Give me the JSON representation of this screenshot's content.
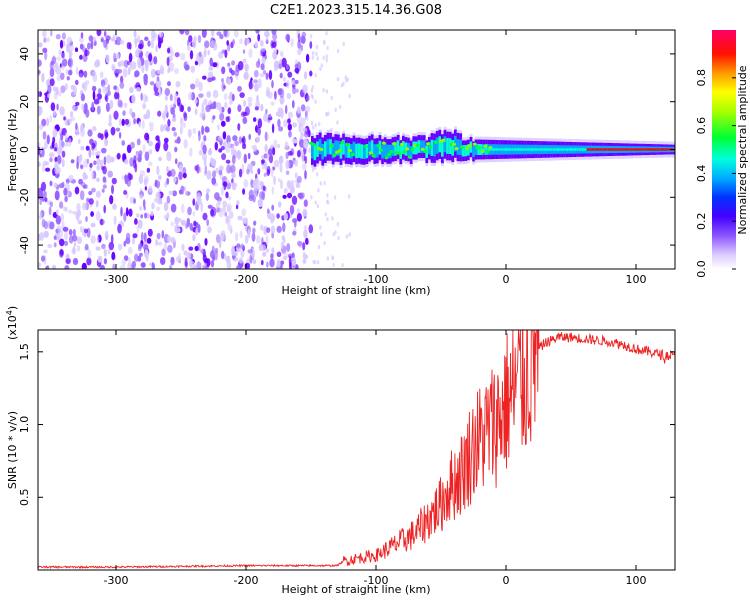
{
  "title": "C2E1.2023.315.14.36.G08",
  "colors": {
    "cmap": [
      "#ffffff",
      "#d7c8ff",
      "#9966ff",
      "#6600ff",
      "#2222ff",
      "#00aaff",
      "#00ffcc",
      "#00ff33",
      "#88ff00",
      "#ffff00",
      "#ff9900",
      "#ff0000",
      "#ff0066"
    ],
    "snr_line": "#ee2222"
  },
  "chart_data": [
    {
      "type": "heatmap",
      "xlabel": "Height of straight line (km)",
      "ylabel": "Frequency (Hz)",
      "xlim": [
        -360,
        130
      ],
      "ylim": [
        -50,
        50
      ],
      "x_ticks": [
        -300,
        -200,
        -100,
        0,
        100
      ],
      "x_tick_labels": [
        "-300",
        "-200",
        "-100",
        "0",
        "100"
      ],
      "y_ticks": [
        -40,
        -20,
        0,
        20,
        40
      ],
      "y_tick_labels": [
        "-40",
        "-20",
        "0",
        "20",
        "40"
      ],
      "colorbar": {
        "label": "Normalized spectral amplitude",
        "range": [
          0,
          1
        ],
        "ticks": [
          0.0,
          0.2,
          0.4,
          0.6,
          0.8
        ],
        "tick_labels": [
          "0.0",
          "0.2",
          "0.4",
          "0.6",
          "0.8"
        ]
      },
      "regions": [
        {
          "name": "noise",
          "x_range": [
            -360,
            -150
          ],
          "freq_range": [
            -50,
            50
          ]
        },
        {
          "name": "sparse",
          "x_range": [
            -150,
            -120
          ],
          "freq_range": [
            -50,
            50
          ]
        },
        {
          "name": "carrier",
          "x_range": [
            -150,
            130
          ],
          "center_freq": 0,
          "half_width": [
            6,
            2
          ]
        }
      ]
    },
    {
      "type": "line",
      "xlabel": "Height of straight line (km)",
      "ylabel": "SNR (10 * v/v)",
      "multiplier_label": "(x10",
      "multiplier_exp": "4",
      "multiplier_close": ")",
      "xlim": [
        -360,
        130
      ],
      "ylim": [
        0,
        1.65
      ],
      "x_ticks": [
        -300,
        -200,
        -100,
        0,
        100
      ],
      "x_tick_labels": [
        "-300",
        "-200",
        "-100",
        "0",
        "100"
      ],
      "y_ticks": [
        0.5,
        1.0,
        1.5
      ],
      "y_tick_labels": [
        "0.5",
        "1.0",
        "1.5"
      ],
      "series": [
        {
          "x": [
            -360,
            -300,
            -200,
            -130,
            -125,
            -115,
            -100,
            -90,
            -80,
            -70,
            -60,
            -50,
            -45,
            -40,
            -35,
            -30,
            -25,
            -20,
            -15,
            -10,
            -5,
            0,
            5,
            10,
            15,
            20,
            25,
            30,
            35,
            40,
            45,
            50,
            60,
            70,
            80,
            90,
            100,
            110,
            120,
            130
          ],
          "y": [
            0.02,
            0.02,
            0.03,
            0.03,
            0.06,
            0.08,
            0.1,
            0.15,
            0.2,
            0.25,
            0.35,
            0.45,
            0.55,
            0.6,
            0.65,
            0.75,
            0.85,
            0.9,
            0.95,
            1.0,
            1.05,
            1.15,
            1.2,
            1.28,
            1.35,
            1.45,
            1.52,
            1.56,
            1.58,
            1.6,
            1.6,
            1.6,
            1.59,
            1.58,
            1.57,
            1.55,
            1.52,
            1.5,
            1.48,
            1.47
          ]
        }
      ]
    }
  ]
}
